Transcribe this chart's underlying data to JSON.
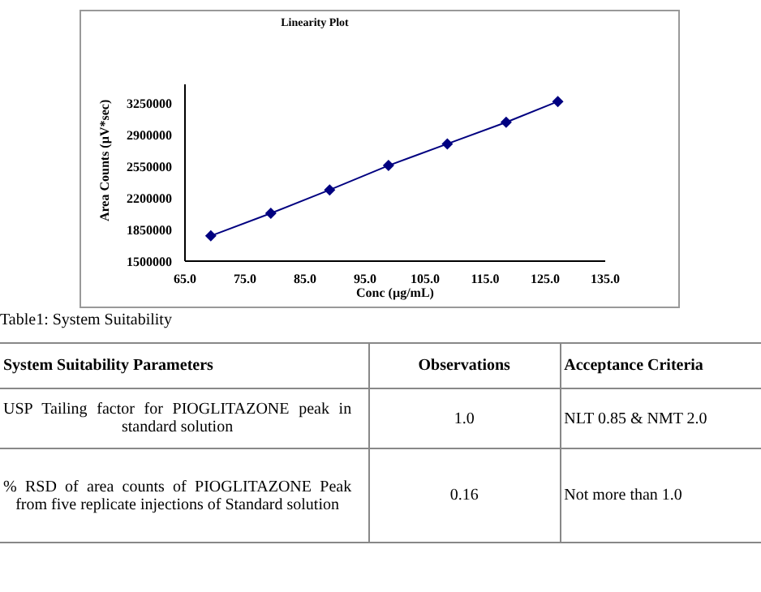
{
  "chart_data": {
    "type": "line",
    "title": "Linearity Plot",
    "xlabel": "Conc (µg/mL)",
    "ylabel": "Area Counts (µV*sec)",
    "x": [
      69.3,
      79.3,
      89.1,
      98.9,
      108.7,
      118.5,
      127.1
    ],
    "series": [
      {
        "color": "#000080",
        "values": [
          1780000,
          2030000,
          2290000,
          2560000,
          2800000,
          3040000,
          3270000
        ]
      }
    ],
    "marker": "diamond",
    "line_style": "solid",
    "xlim": [
      65,
      135
    ],
    "xticks": [
      {
        "value": 65,
        "label": "65.0"
      },
      {
        "value": 75,
        "label": "75.0"
      },
      {
        "value": 85,
        "label": "85.0"
      },
      {
        "value": 95,
        "label": "95.0"
      },
      {
        "value": 105,
        "label": "105.0"
      },
      {
        "value": 115,
        "label": "115.0"
      },
      {
        "value": 125,
        "label": "125.0"
      },
      {
        "value": 135,
        "label": "135.0"
      }
    ],
    "ylim": [
      1500000,
      3460000
    ],
    "yticks": [
      1500000,
      1850000,
      2200000,
      2550000,
      2900000,
      3250000
    ],
    "grid": false,
    "legend": false,
    "annotations": [
      "Table1: System Suitability",
      "System Suitability Parameters",
      "Observations",
      "Acceptance Criteria",
      "USP Tailing factor for PIOGLITAZONE peak in standard solution",
      "1.0",
      "NLT 0.85 & NMT 2.0",
      "% RSD of area counts of PIOGLITAZONE Peak from five replicate injections of Standard solution",
      "0.16",
      "Not more than 1.0"
    ]
  }
}
